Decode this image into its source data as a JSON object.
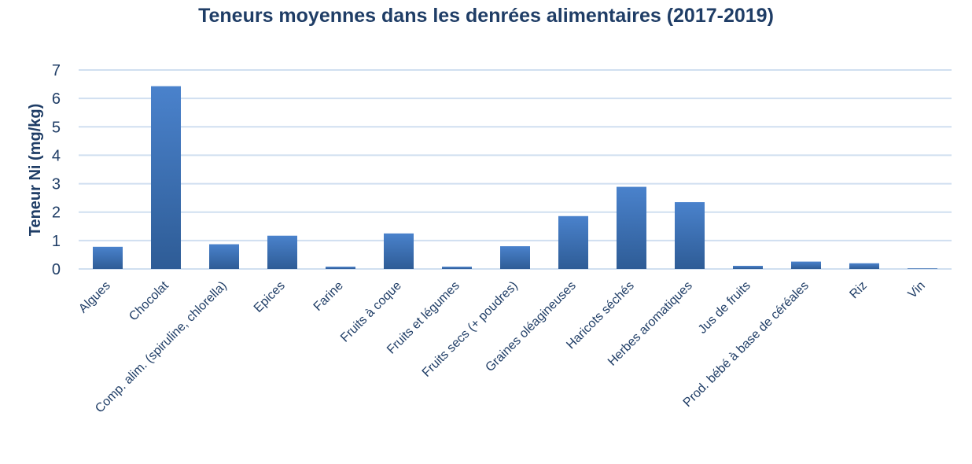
{
  "chart_data": {
    "type": "bar",
    "title": "Teneurs moyennes dans les denrées alimentaires (2017-2019)",
    "xlabel": "",
    "ylabel": "Teneur Ni (mg/kg)",
    "ylim": [
      0,
      7
    ],
    "yticks": [
      "0",
      "1",
      "2",
      "3",
      "4",
      "5",
      "6",
      "7"
    ],
    "grid": true,
    "legend": "none",
    "categories": [
      "Algues",
      "Chocolat",
      "Comp. alim. (spiruline, chlorella)",
      "Epices",
      "Farine",
      "Fruits à coque",
      "Fruits et légumes",
      "Fruits secs (+ poudres)",
      "Graines oléagineuses",
      "Haricots séchés",
      "Herbes aromatiques",
      "Jus de fruits",
      "Prod. bébé à base de céréales",
      "Riz",
      "Vin"
    ],
    "values": [
      0.78,
      6.43,
      0.87,
      1.17,
      0.08,
      1.25,
      0.08,
      0.8,
      1.86,
      2.89,
      2.35,
      0.11,
      0.26,
      0.2,
      0.02
    ],
    "colors": {
      "bar_top": "#4a82cc",
      "bar_bottom": "#2e5c96",
      "grid": "#d0dff0",
      "axis_text": "#1f3d66",
      "title": "#1f3d66"
    }
  }
}
